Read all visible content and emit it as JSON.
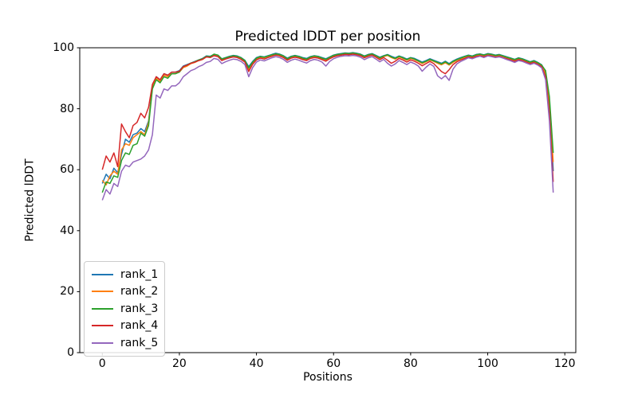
{
  "figure": {
    "background": "#ffffff",
    "spine_color": "#000000",
    "tick_color": "#000000"
  },
  "chart_data": {
    "type": "line",
    "title": "Predicted lDDT per position",
    "xlabel": "Positions",
    "ylabel": "Predicted lDDT",
    "xlim": [
      -5.85,
      122.85
    ],
    "ylim": [
      0,
      100
    ],
    "xticks": [
      0,
      20,
      40,
      60,
      80,
      100,
      120
    ],
    "yticks": [
      0,
      20,
      40,
      60,
      80,
      100
    ],
    "grid": false,
    "legend_position": "lower left",
    "line_width": 1.5,
    "x": [
      0,
      1,
      2,
      3,
      4,
      5,
      6,
      7,
      8,
      9,
      10,
      11,
      12,
      13,
      14,
      15,
      16,
      17,
      18,
      19,
      20,
      21,
      22,
      23,
      24,
      25,
      26,
      27,
      28,
      29,
      30,
      31,
      32,
      33,
      34,
      35,
      36,
      37,
      38,
      39,
      40,
      41,
      42,
      43,
      44,
      45,
      46,
      47,
      48,
      49,
      50,
      51,
      52,
      53,
      54,
      55,
      56,
      57,
      58,
      59,
      60,
      61,
      62,
      63,
      64,
      65,
      66,
      67,
      68,
      69,
      70,
      71,
      72,
      73,
      74,
      75,
      76,
      77,
      78,
      79,
      80,
      81,
      82,
      83,
      84,
      85,
      86,
      87,
      88,
      89,
      90,
      91,
      92,
      93,
      94,
      95,
      96,
      97,
      98,
      99,
      100,
      101,
      102,
      103,
      104,
      105,
      106,
      107,
      108,
      109,
      110,
      111,
      112,
      113,
      114,
      115,
      116,
      117
    ],
    "series": [
      {
        "name": "rank_1",
        "color": "#1f77b4",
        "values": [
          55.5,
          58.5,
          57.0,
          60.5,
          59.0,
          65.0,
          70.0,
          69.0,
          71.5,
          72.0,
          73.5,
          72.5,
          76.0,
          87.5,
          90.5,
          89.5,
          91.5,
          91.0,
          92.0,
          92.0,
          92.5,
          94.0,
          94.5,
          95.0,
          95.5,
          96.0,
          96.5,
          97.3,
          97.2,
          97.8,
          97.5,
          96.4,
          96.8,
          97.2,
          97.5,
          97.3,
          96.8,
          95.9,
          93.8,
          95.5,
          96.8,
          97.2,
          97.0,
          97.4,
          97.8,
          98.2,
          97.9,
          97.4,
          96.6,
          97.2,
          97.5,
          97.2,
          96.8,
          96.5,
          97.1,
          97.4,
          97.2,
          96.8,
          96.4,
          97.0,
          97.6,
          97.9,
          98.1,
          98.3,
          98.2,
          98.4,
          98.2,
          97.9,
          97.3,
          97.8,
          98.1,
          97.5,
          96.9,
          97.4,
          97.8,
          97.2,
          96.7,
          97.3,
          96.9,
          96.3,
          96.8,
          96.5,
          95.9,
          95.3,
          95.8,
          96.4,
          95.9,
          95.4,
          94.9,
          95.6,
          94.8,
          95.7,
          96.3,
          96.8,
          97.2,
          97.6,
          97.3,
          97.8,
          98.0,
          97.7,
          98.1,
          97.9,
          97.6,
          97.8,
          97.4,
          97.0,
          96.6,
          96.2,
          96.7,
          96.4,
          95.9,
          95.4,
          95.8,
          95.2,
          94.4,
          92.0,
          82.0,
          59.5
        ]
      },
      {
        "name": "rank_2",
        "color": "#ff7f0e",
        "values": [
          56.5,
          55.0,
          58.0,
          59.5,
          58.5,
          66.5,
          68.5,
          68.0,
          70.5,
          71.5,
          72.5,
          71.5,
          75.5,
          87.0,
          90.0,
          89.0,
          91.0,
          90.5,
          91.5,
          91.5,
          92.0,
          93.5,
          94.0,
          94.8,
          95.2,
          95.8,
          96.2,
          97.0,
          96.9,
          97.5,
          97.2,
          96.0,
          96.5,
          96.9,
          97.2,
          97.0,
          96.4,
          95.5,
          92.8,
          95.0,
          96.4,
          96.9,
          96.7,
          97.1,
          97.5,
          97.9,
          97.6,
          97.1,
          96.2,
          96.9,
          97.2,
          96.9,
          96.4,
          96.1,
          96.8,
          97.1,
          96.9,
          96.4,
          96.0,
          96.7,
          97.3,
          97.6,
          97.8,
          98.0,
          97.9,
          98.1,
          97.9,
          97.6,
          97.0,
          97.5,
          97.8,
          97.2,
          96.5,
          97.1,
          97.5,
          96.8,
          96.3,
          97.0,
          96.5,
          95.9,
          96.5,
          96.1,
          95.5,
          94.8,
          95.4,
          96.0,
          95.5,
          94.9,
          94.4,
          95.1,
          94.3,
          95.2,
          95.9,
          96.4,
          96.9,
          97.3,
          97.0,
          97.5,
          97.7,
          97.4,
          97.8,
          97.6,
          97.3,
          97.5,
          97.1,
          96.7,
          96.3,
          95.9,
          96.4,
          96.1,
          95.6,
          95.1,
          95.5,
          94.9,
          94.1,
          91.5,
          81.0,
          62.5
        ]
      },
      {
        "name": "rank_3",
        "color": "#2ca02c",
        "values": [
          52.5,
          56.0,
          55.5,
          58.0,
          57.5,
          63.0,
          65.5,
          65.0,
          68.0,
          68.5,
          72.0,
          71.0,
          74.5,
          86.5,
          89.5,
          88.5,
          90.5,
          90.0,
          91.5,
          91.5,
          92.0,
          93.8,
          94.3,
          95.0,
          95.4,
          96.0,
          96.4,
          97.2,
          97.1,
          97.9,
          97.6,
          96.3,
          96.7,
          97.1,
          97.4,
          97.2,
          96.7,
          95.8,
          93.4,
          95.3,
          96.6,
          97.1,
          96.9,
          97.3,
          97.7,
          98.0,
          97.8,
          97.3,
          96.4,
          97.1,
          97.4,
          97.1,
          96.6,
          96.3,
          97.0,
          97.3,
          97.1,
          96.6,
          96.2,
          96.9,
          97.5,
          97.8,
          98.0,
          98.2,
          98.1,
          98.3,
          98.1,
          97.8,
          97.2,
          97.7,
          98.0,
          97.4,
          96.7,
          97.3,
          97.7,
          97.0,
          96.5,
          97.2,
          96.7,
          96.1,
          96.7,
          96.3,
          95.7,
          95.1,
          95.6,
          96.2,
          95.7,
          95.2,
          94.7,
          95.4,
          94.6,
          95.5,
          96.1,
          96.6,
          97.1,
          97.5,
          97.2,
          97.7,
          97.9,
          97.6,
          98.0,
          97.8,
          97.5,
          97.7,
          97.3,
          96.9,
          96.5,
          96.1,
          96.6,
          96.3,
          95.8,
          95.3,
          95.7,
          95.1,
          94.3,
          92.5,
          84.0,
          65.5
        ]
      },
      {
        "name": "rank_4",
        "color": "#d62728",
        "values": [
          60.0,
          64.5,
          62.5,
          65.5,
          61.0,
          75.0,
          72.5,
          70.5,
          74.5,
          75.5,
          78.5,
          77.0,
          80.5,
          88.0,
          90.5,
          89.5,
          91.5,
          91.0,
          92.0,
          92.0,
          92.3,
          93.8,
          94.3,
          94.9,
          95.3,
          95.8,
          96.2,
          97.0,
          96.8,
          97.4,
          97.1,
          95.8,
          96.3,
          96.7,
          97.0,
          96.8,
          96.2,
          95.3,
          92.2,
          94.6,
          96.0,
          96.6,
          96.3,
          96.8,
          97.2,
          97.6,
          97.3,
          96.8,
          95.9,
          96.6,
          96.9,
          96.6,
          96.1,
          95.8,
          96.5,
          96.8,
          96.6,
          96.1,
          95.6,
          96.4,
          97.0,
          97.4,
          97.6,
          97.8,
          97.7,
          97.9,
          97.7,
          97.4,
          96.7,
          97.2,
          97.6,
          96.9,
          96.1,
          96.8,
          95.9,
          94.9,
          95.6,
          96.5,
          96.0,
          95.3,
          96.0,
          95.6,
          94.9,
          94.1,
          94.8,
          95.5,
          94.8,
          93.5,
          92.2,
          91.5,
          92.8,
          94.5,
          95.4,
          96.0,
          96.5,
          97.0,
          96.7,
          97.2,
          97.4,
          97.1,
          97.5,
          97.3,
          97.0,
          97.2,
          96.8,
          96.4,
          96.0,
          95.6,
          96.1,
          95.8,
          95.3,
          94.8,
          95.2,
          94.6,
          93.8,
          90.5,
          78.5,
          56.0
        ]
      },
      {
        "name": "rank_5",
        "color": "#9467bd",
        "values": [
          50.0,
          53.5,
          52.0,
          55.5,
          54.5,
          59.5,
          61.5,
          61.0,
          62.5,
          63.0,
          63.5,
          64.5,
          66.5,
          71.5,
          84.5,
          83.5,
          86.5,
          86.0,
          87.5,
          87.5,
          88.5,
          90.5,
          91.5,
          92.5,
          93.0,
          93.8,
          94.3,
          95.2,
          95.5,
          96.5,
          96.2,
          94.8,
          95.4,
          95.9,
          96.3,
          96.1,
          95.5,
          94.5,
          90.5,
          93.5,
          95.3,
          96.0,
          95.7,
          96.2,
          96.7,
          97.1,
          96.8,
          96.2,
          95.2,
          95.9,
          96.3,
          95.9,
          95.4,
          95.0,
          95.8,
          96.2,
          95.9,
          95.3,
          94.0,
          95.5,
          96.4,
          96.9,
          97.2,
          97.4,
          97.3,
          97.5,
          97.3,
          96.9,
          96.1,
          96.7,
          97.1,
          96.3,
          95.4,
          96.2,
          94.9,
          94.0,
          94.7,
          95.8,
          95.2,
          94.5,
          95.3,
          94.8,
          94.0,
          92.3,
          93.6,
          94.7,
          93.9,
          90.8,
          89.8,
          90.9,
          89.3,
          93.0,
          94.7,
          95.5,
          96.1,
          96.7,
          96.4,
          96.9,
          97.2,
          96.8,
          97.3,
          97.1,
          96.8,
          97.0,
          96.6,
          96.1,
          95.7,
          95.2,
          95.8,
          95.5,
          95.0,
          94.5,
          94.9,
          94.3,
          93.4,
          89.5,
          76.0,
          52.5
        ]
      }
    ]
  }
}
